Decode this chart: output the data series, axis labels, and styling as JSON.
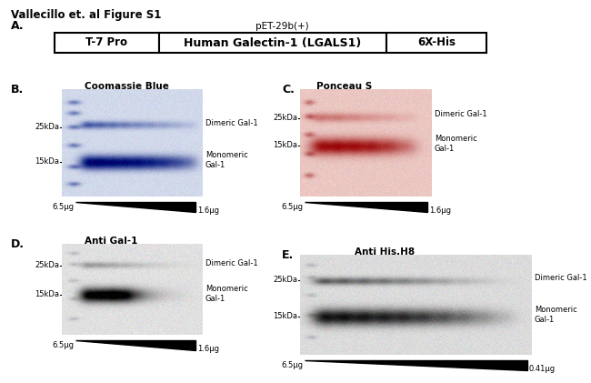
{
  "title": "Vallecillo et. al Figure S1",
  "panel_A_label": "A.",
  "panel_B_label": "B.",
  "panel_C_label": "C.",
  "panel_D_label": "D.",
  "panel_E_label": "E.",
  "pet_label": "pET-29b(+)",
  "box_labels": [
    "T-7 Pro",
    "Human Galectin-1 (LGALS1)",
    "6X-His"
  ],
  "panel_B_title": "Coomassie Blue",
  "panel_C_title": "Ponceau S",
  "panel_D_title": "Anti Gal-1",
  "panel_E_title": "Anti His.H8",
  "dimeric_label": "Dimeric Gal-1",
  "monomeric_label": "Monomeric\nGal-1",
  "mw_25": "25kDa",
  "mw_15": "15kDa",
  "left_conc": "6.5μg",
  "right_conc_BCD": "1.6μg",
  "right_conc_E": "0.41μg",
  "bg_color": "#ffffff"
}
